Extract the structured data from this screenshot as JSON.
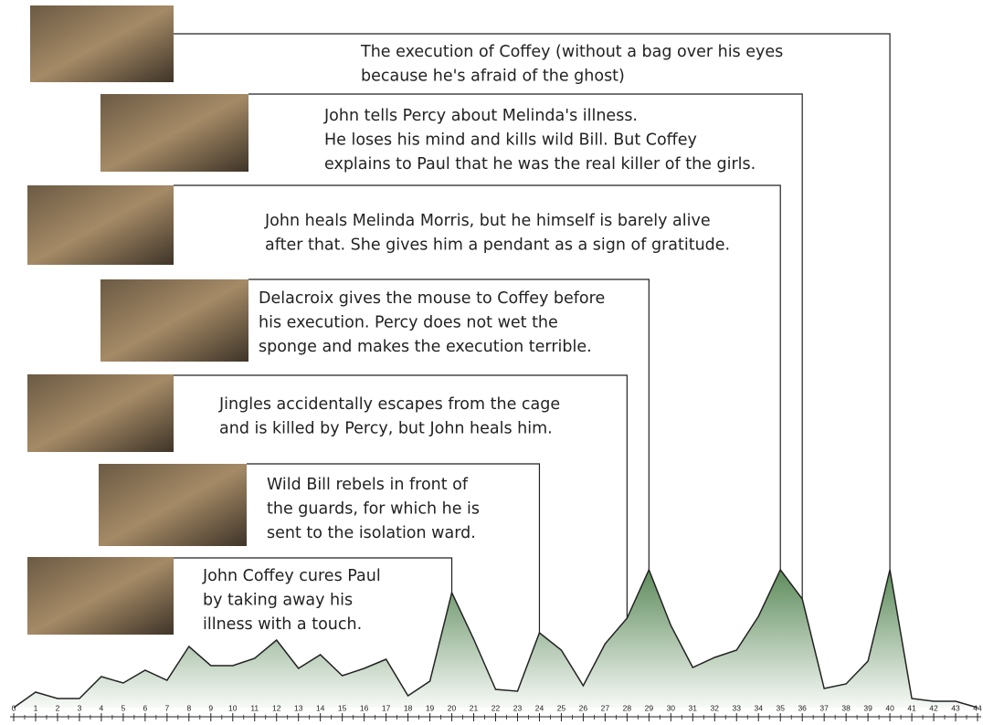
{
  "chart_data": {
    "type": "area",
    "x": [
      0,
      1,
      2,
      3,
      4,
      5,
      6,
      7,
      8,
      9,
      10,
      11,
      12,
      13,
      14,
      15,
      16,
      17,
      18,
      19,
      20,
      21,
      22,
      23,
      24,
      25,
      26,
      27,
      28,
      29,
      30,
      31,
      32,
      33,
      34,
      35,
      36,
      37,
      38,
      39,
      40,
      41,
      42,
      43,
      44
    ],
    "values": [
      0,
      17,
      10,
      10,
      34,
      27,
      41,
      30,
      67,
      46,
      46,
      54,
      74,
      43,
      58,
      35,
      43,
      53,
      13,
      29,
      126,
      75,
      20,
      18,
      82,
      63,
      24,
      70,
      98,
      151,
      90,
      44,
      55,
      63,
      100,
      151,
      119,
      21,
      26,
      51,
      151,
      10,
      7,
      7,
      0
    ],
    "color": "#5e8c5c",
    "xlim": [
      0,
      44
    ],
    "xticks": [
      0,
      1,
      2,
      3,
      4,
      5,
      6,
      7,
      8,
      9,
      10,
      11,
      12,
      13,
      14,
      15,
      16,
      17,
      18,
      19,
      20,
      21,
      22,
      23,
      24,
      25,
      26,
      27,
      28,
      29,
      30,
      31,
      32,
      33,
      34,
      35,
      36,
      37,
      38,
      39,
      40,
      41,
      42,
      43,
      44
    ],
    "ylim": [
      0,
      160
    ],
    "annotations": [
      {
        "x": 20,
        "lines": [
          "John Coffey cures Paul",
          "by taking away his",
          "illness with a touch."
        ]
      },
      {
        "x": 24,
        "lines": [
          "Wild Bill rebels in front of",
          "the guards, for which he is",
          "sent to the isolation ward."
        ]
      },
      {
        "x": 28,
        "lines": [
          "Jingles accidentally escapes from the cage",
          "and is killed by Percy, but John heals him."
        ]
      },
      {
        "x": 29,
        "lines": [
          "Delacroix gives the mouse to Coffey before",
          "his execution.  Percy does not wet the",
          "sponge and makes the execution terrible."
        ]
      },
      {
        "x": 35,
        "lines": [
          "John heals Melinda Morris, but he himself is barely alive",
          "after that.  She gives him a pendant as a sign of gratitude."
        ]
      },
      {
        "x": 36,
        "lines": [
          "John tells Percy about Melinda's illness.",
          "He loses his mind and kills wild Bill.  But Coffey",
          "explains to Paul that he was the real killer of the girls."
        ]
      },
      {
        "x": 40,
        "lines": [
          "The execution of Coffey (without a bag over his eyes",
          "because he's afraid of the ghost)"
        ]
      }
    ]
  }
}
